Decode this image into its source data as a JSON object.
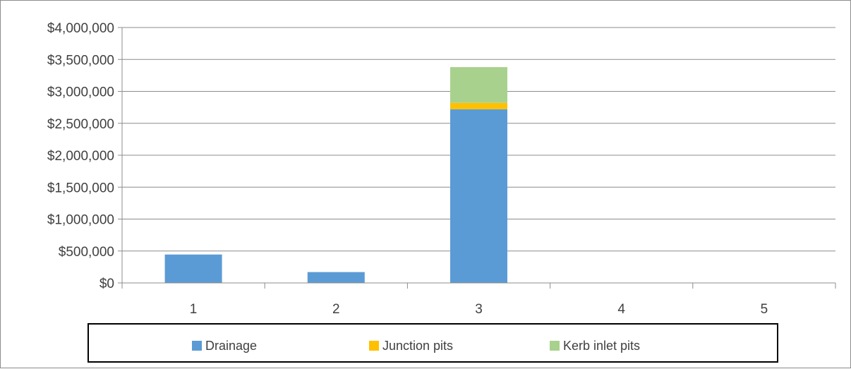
{
  "chart_data": {
    "type": "bar",
    "stacked": true,
    "title": "",
    "xlabel": "",
    "ylabel": "",
    "categories": [
      "1",
      "2",
      "3",
      "4",
      "5"
    ],
    "series": [
      {
        "name": "Drainage",
        "color": "#5b9bd5",
        "values": [
          445000,
          170000,
          2720000,
          0,
          0
        ]
      },
      {
        "name": "Junction pits",
        "color": "#ffc000",
        "values": [
          0,
          0,
          100000,
          0,
          0
        ]
      },
      {
        "name": "Kerb inlet pits",
        "color": "#a9d18e",
        "values": [
          0,
          0,
          560000,
          0,
          0
        ]
      }
    ],
    "ylim": [
      0,
      4000000
    ],
    "y_ticks": [
      0,
      500000,
      1000000,
      1500000,
      2000000,
      2500000,
      3000000,
      3500000,
      4000000
    ],
    "y_tick_labels": [
      "$0",
      "$500,000",
      "$1,000,000",
      "$1,500,000",
      "$2,000,000",
      "$2,500,000",
      "$3,000,000",
      "$3,500,000",
      "$4,000,000"
    ],
    "grid": true,
    "legend_position": "bottom"
  }
}
